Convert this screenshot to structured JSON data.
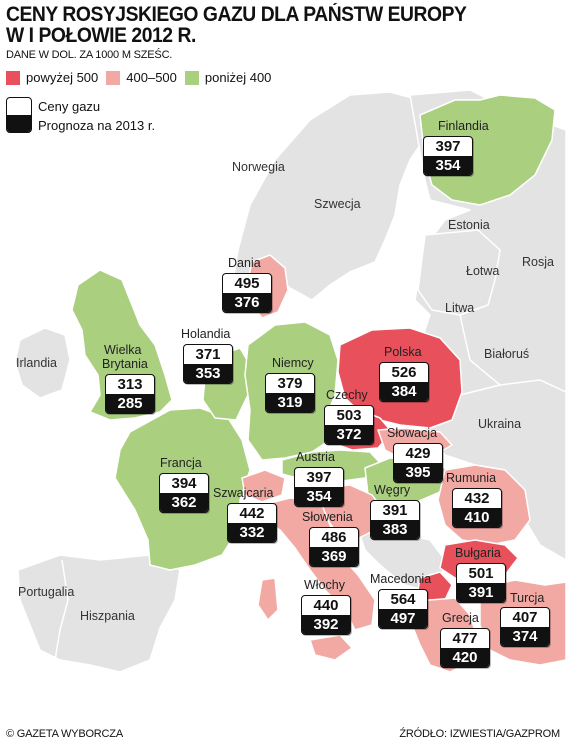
{
  "title_line1": "CENY ROSYJSKIEGO GAZU DLA PAŃSTW EUROPY",
  "title_line2": "W I POŁOWIE 2012 R.",
  "subtitle": "DANE W DOL. ZA 1000 M SZEŚC.",
  "legend": {
    "high": {
      "label": "powyżej 500",
      "color": "#e8505b"
    },
    "mid": {
      "label": "400–500",
      "color": "#f2a9a3"
    },
    "low": {
      "label": "poniżej 400",
      "color": "#a9cf7f"
    },
    "current_label": "Ceny gazu",
    "forecast_label": "Prognoza na 2013 r."
  },
  "colors": {
    "sea": "#ffffff",
    "nondata": "#e3e3e3",
    "border": "#ffffff"
  },
  "countries": [
    {
      "id": "finlandia",
      "name": "Finlandia",
      "current": "397",
      "forecast": "354"
    },
    {
      "id": "dania",
      "name": "Dania",
      "current": "495",
      "forecast": "376"
    },
    {
      "id": "holandia",
      "name": "Holandia",
      "current": "371",
      "forecast": "353"
    },
    {
      "id": "wielka-brytania",
      "name": "Wielka Brytania",
      "name1": "Wielka",
      "name2": "Brytania",
      "current": "313",
      "forecast": "285"
    },
    {
      "id": "niemcy",
      "name": "Niemcy",
      "current": "379",
      "forecast": "319"
    },
    {
      "id": "polska",
      "name": "Polska",
      "current": "526",
      "forecast": "384"
    },
    {
      "id": "czechy",
      "name": "Czechy",
      "current": "503",
      "forecast": "372"
    },
    {
      "id": "slowacja",
      "name": "Słowacja",
      "current": "429",
      "forecast": "395"
    },
    {
      "id": "francja",
      "name": "Francja",
      "current": "394",
      "forecast": "362"
    },
    {
      "id": "austria",
      "name": "Austria",
      "current": "397",
      "forecast": "354"
    },
    {
      "id": "szwajcaria",
      "name": "Szwajcaria",
      "current": "442",
      "forecast": "332"
    },
    {
      "id": "wegry",
      "name": "Węgry",
      "current": "391",
      "forecast": "383"
    },
    {
      "id": "rumunia",
      "name": "Rumunia",
      "current": "432",
      "forecast": "410"
    },
    {
      "id": "slowenia",
      "name": "Słowenia",
      "current": "486",
      "forecast": "369"
    },
    {
      "id": "bulgaria",
      "name": "Bułgaria",
      "current": "501",
      "forecast": "391"
    },
    {
      "id": "wlochy",
      "name": "Włochy",
      "current": "440",
      "forecast": "392"
    },
    {
      "id": "macedonia",
      "name": "Macedonia",
      "current": "564",
      "forecast": "497"
    },
    {
      "id": "turcja",
      "name": "Turcja",
      "current": "407",
      "forecast": "374"
    },
    {
      "id": "grecja",
      "name": "Grecja",
      "current": "477",
      "forecast": "420"
    }
  ],
  "other_labels": {
    "norwegia": "Norwegia",
    "szwecja": "Szwecja",
    "estonia": "Estonia",
    "lotwa": "Łotwa",
    "rosja": "Rosja",
    "litwa": "Litwa",
    "bialorus": "Białoruś",
    "ukraina": "Ukraina",
    "irlandia": "Irlandia",
    "portugalia": "Portugalia",
    "hiszpania": "Hiszpania"
  },
  "footer_left": "© GAZETA WYBORCZA",
  "footer_right": "ŹRÓDŁO: IZWIESTIA/GAZPROM"
}
